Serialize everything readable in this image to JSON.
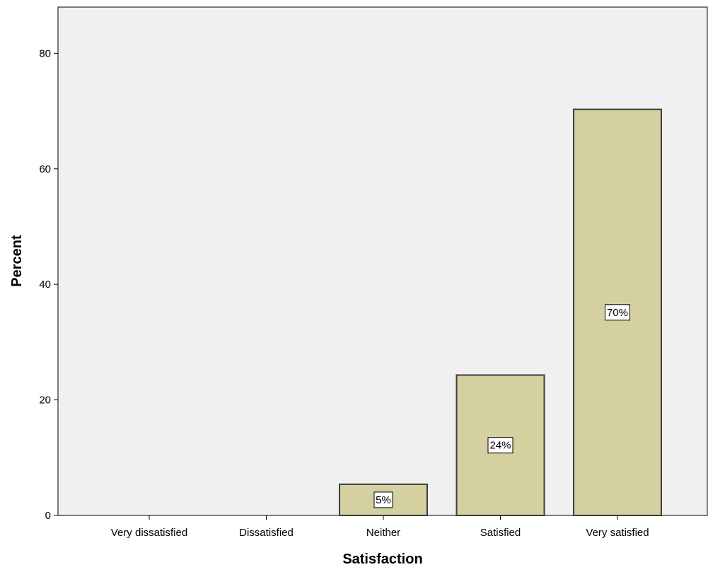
{
  "chart_data": {
    "type": "bar",
    "categories": [
      "Very dissatisfied",
      "Dissatisfied",
      "Neither",
      "Satisfied",
      "Very satisfied"
    ],
    "values": [
      0,
      0,
      5.4,
      24.3,
      70.3
    ],
    "data_labels": [
      "",
      "",
      "5%",
      "24%",
      "70%"
    ],
    "xlabel": "Satisfaction",
    "ylabel": "Percent",
    "ylim": [
      0,
      88
    ],
    "yticks": [
      0,
      20,
      40,
      60,
      80
    ],
    "grid": false,
    "colors": {
      "plot_background": "#f0f0f0",
      "bar_fill": "#d5d09f",
      "bar_stroke": "#3c3c3c",
      "label_box": "#ffffff"
    }
  }
}
